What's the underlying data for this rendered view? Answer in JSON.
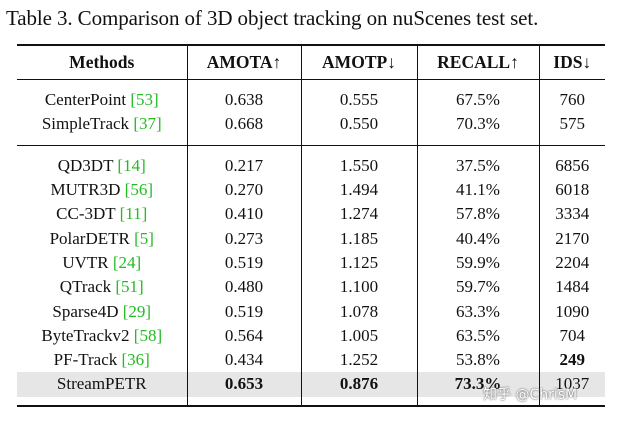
{
  "caption": "Table 3. Comparison of 3D object tracking on nuScenes test set.",
  "headers": [
    "Methods",
    "AMOTA↑",
    "AMOTP↓",
    "RECALL↑",
    "IDS↓"
  ],
  "group1": [
    {
      "method": "CenterPoint",
      "cite": "[53]",
      "amota": "0.638",
      "amotp": "0.555",
      "recall": "67.5%",
      "ids": "760"
    },
    {
      "method": "SimpleTrack",
      "cite": "[37]",
      "amota": "0.668",
      "amotp": "0.550",
      "recall": "70.3%",
      "ids": "575"
    }
  ],
  "group2": [
    {
      "method": "QD3DT",
      "cite": "[14]",
      "amota": "0.217",
      "amotp": "1.550",
      "recall": "37.5%",
      "ids": "6856"
    },
    {
      "method": "MUTR3D",
      "cite": "[56]",
      "amota": "0.270",
      "amotp": "1.494",
      "recall": "41.1%",
      "ids": "6018"
    },
    {
      "method": "CC-3DT",
      "cite": "[11]",
      "amota": "0.410",
      "amotp": "1.274",
      "recall": "57.8%",
      "ids": "3334"
    },
    {
      "method": "PolarDETR",
      "cite": "[5]",
      "amota": "0.273",
      "amotp": "1.185",
      "recall": "40.4%",
      "ids": "2170"
    },
    {
      "method": "UVTR",
      "cite": "[24]",
      "amota": "0.519",
      "amotp": "1.125",
      "recall": "59.9%",
      "ids": "2204"
    },
    {
      "method": "QTrack",
      "cite": "[51]",
      "amota": "0.480",
      "amotp": "1.100",
      "recall": "59.7%",
      "ids": "1484"
    },
    {
      "method": "Sparse4D",
      "cite": "[29]",
      "amota": "0.519",
      "amotp": "1.078",
      "recall": "63.3%",
      "ids": "1090"
    },
    {
      "method": "ByteTrackv2",
      "cite": "[58]",
      "amota": "0.564",
      "amotp": "1.005",
      "recall": "63.5%",
      "ids": "704"
    },
    {
      "method": "PF-Track",
      "cite": "[36]",
      "amota": "0.434",
      "amotp": "1.252",
      "recall": "53.8%",
      "ids": "249"
    }
  ],
  "final_row": {
    "method": "StreamPETR",
    "amota": "0.653",
    "amotp": "0.876",
    "recall": "73.3%",
    "ids": "1037"
  },
  "watermark": "知乎 @ChrisM",
  "colors": {
    "citation": "#22bb22",
    "highlight_row": "#e6e6e6"
  }
}
